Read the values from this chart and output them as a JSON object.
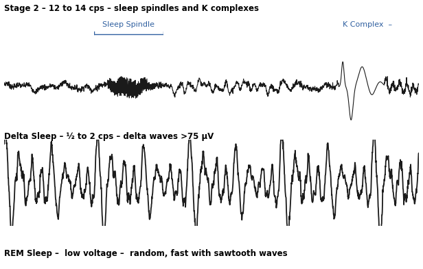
{
  "title1": "Stage 2 – 12 to 14 cps – sleep spindles and K complexes",
  "title2": "Delta Sleep – ½ to 2 cps – delta waves >75 μV",
  "title3": "REM Sleep –  low voltage –  random, fast with sawtooth waves",
  "label_spindle": "Sleep Spindle",
  "label_kcomplex": "K Complex",
  "bg_color": "#ffffff",
  "line_color": "#1a1a1a",
  "label_color": "#3060a0",
  "fig_width": 6.16,
  "fig_height": 3.93,
  "dpi": 100
}
